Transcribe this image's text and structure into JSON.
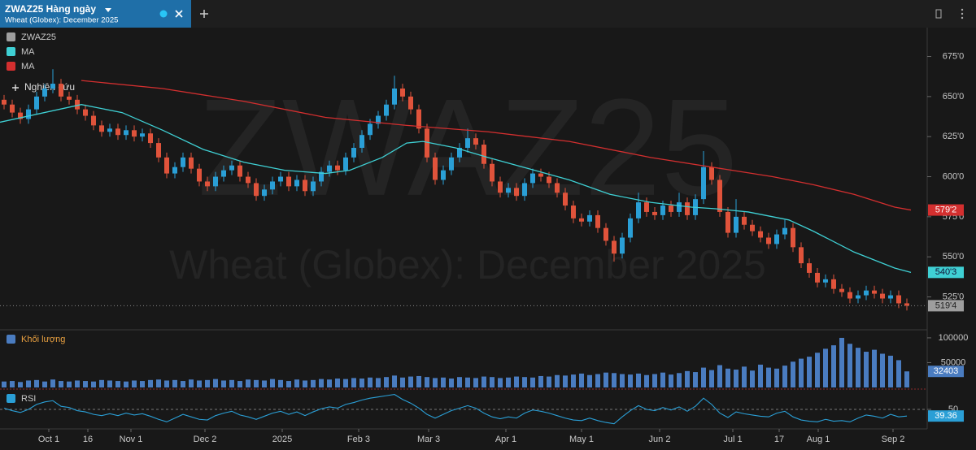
{
  "header": {
    "title": "ZWAZ25 Hàng ngày",
    "subtitle": "Wheat (Globex): December 2025"
  },
  "study_button": "Nghiên cứu",
  "chart_data": [
    {
      "type": "candlestick",
      "name": "ZWAZ25",
      "up_color": "#2a9fd6",
      "down_color": "#e0533b",
      "last_label": "519'4",
      "xlim": [
        -0.5,
        111.5
      ],
      "xticks": [
        {
          "value": 5.5,
          "label": "Oct 1"
        },
        {
          "value": 10.3,
          "label": "16"
        },
        {
          "value": 15.6,
          "label": "Nov 1"
        },
        {
          "value": 24.7,
          "label": "Dec 2"
        },
        {
          "value": 34.2,
          "label": "2025"
        },
        {
          "value": 43.6,
          "label": "Feb 3"
        },
        {
          "value": 52.2,
          "label": "Mar 3"
        },
        {
          "value": 61.7,
          "label": "Apr 1"
        },
        {
          "value": 71,
          "label": "May 1"
        },
        {
          "value": 80.6,
          "label": "Jun 2"
        },
        {
          "value": 89.6,
          "label": "Jul 1"
        },
        {
          "value": 95.3,
          "label": "17"
        },
        {
          "value": 100.1,
          "label": "Aug 1"
        },
        {
          "value": 109.3,
          "label": "Sep 2"
        }
      ],
      "ylim": [
        505,
        693
      ],
      "yticks": [
        {
          "value": 525,
          "label": "525'0"
        },
        {
          "value": 550,
          "label": "550'0"
        },
        {
          "value": 575,
          "label": "575'0"
        },
        {
          "value": 600,
          "label": "600'0"
        },
        {
          "value": 625,
          "label": "625'0"
        },
        {
          "value": 650,
          "label": "650'0"
        },
        {
          "value": 675,
          "label": "675'0"
        }
      ],
      "candles": [
        [
          648,
          651,
          642,
          645
        ],
        [
          645,
          648,
          637,
          640
        ],
        [
          640,
          643,
          633,
          636
        ],
        [
          636,
          645,
          633,
          642
        ],
        [
          642,
          653,
          639,
          650
        ],
        [
          650,
          658,
          647,
          655
        ],
        [
          655,
          667,
          652,
          658
        ],
        [
          658,
          661,
          647,
          650
        ],
        [
          650,
          653,
          645,
          648
        ],
        [
          648,
          651,
          639,
          642
        ],
        [
          642,
          645,
          635,
          638
        ],
        [
          638,
          641,
          629,
          632
        ],
        [
          632,
          635,
          625,
          628
        ],
        [
          628,
          633,
          625,
          630
        ],
        [
          630,
          633,
          623,
          626
        ],
        [
          626,
          632,
          623,
          629
        ],
        [
          629,
          632,
          622,
          625
        ],
        [
          625,
          630,
          622,
          627
        ],
        [
          627,
          630,
          618,
          621
        ],
        [
          621,
          624,
          609,
          612
        ],
        [
          612,
          615,
          599,
          602
        ],
        [
          602,
          609,
          599,
          606
        ],
        [
          606,
          615,
          603,
          612
        ],
        [
          612,
          615,
          602,
          605
        ],
        [
          605,
          608,
          594,
          597
        ],
        [
          597,
          600,
          591,
          594
        ],
        [
          594,
          603,
          591,
          600
        ],
        [
          600,
          607,
          597,
          604
        ],
        [
          604,
          610,
          601,
          607
        ],
        [
          607,
          610,
          597,
          600
        ],
        [
          600,
          603,
          593,
          596
        ],
        [
          596,
          599,
          585,
          588
        ],
        [
          588,
          595,
          585,
          592
        ],
        [
          592,
          600,
          589,
          597
        ],
        [
          597,
          603,
          594,
          600
        ],
        [
          600,
          603,
          591,
          594
        ],
        [
          594,
          601,
          591,
          598
        ],
        [
          598,
          601,
          588,
          591
        ],
        [
          591,
          600,
          588,
          597
        ],
        [
          597,
          606,
          594,
          603
        ],
        [
          603,
          610,
          600,
          607
        ],
        [
          607,
          610,
          601,
          604
        ],
        [
          604,
          615,
          601,
          612
        ],
        [
          612,
          621,
          609,
          618
        ],
        [
          618,
          629,
          615,
          626
        ],
        [
          626,
          636,
          623,
          633
        ],
        [
          633,
          641,
          630,
          638
        ],
        [
          638,
          648,
          635,
          645
        ],
        [
          645,
          663,
          642,
          655
        ],
        [
          655,
          658,
          647,
          650
        ],
        [
          650,
          653,
          639,
          642
        ],
        [
          642,
          645,
          627,
          630
        ],
        [
          630,
          633,
          609,
          612
        ],
        [
          612,
          615,
          595,
          598
        ],
        [
          598,
          607,
          595,
          604
        ],
        [
          604,
          615,
          601,
          612
        ],
        [
          612,
          621,
          609,
          618
        ],
        [
          618,
          630,
          615,
          624
        ],
        [
          624,
          627,
          617,
          620
        ],
        [
          620,
          623,
          605,
          608
        ],
        [
          608,
          611,
          594,
          597
        ],
        [
          597,
          600,
          587,
          590
        ],
        [
          590,
          596,
          587,
          593
        ],
        [
          593,
          596,
          585,
          588
        ],
        [
          588,
          599,
          585,
          596
        ],
        [
          596,
          605,
          593,
          602
        ],
        [
          602,
          605,
          597,
          600
        ],
        [
          600,
          603,
          593,
          596
        ],
        [
          596,
          599,
          587,
          590
        ],
        [
          590,
          593,
          579,
          582
        ],
        [
          582,
          585,
          571,
          574
        ],
        [
          574,
          577,
          569,
          572
        ],
        [
          572,
          579,
          569,
          576
        ],
        [
          576,
          579,
          565,
          568
        ],
        [
          568,
          571,
          557,
          560
        ],
        [
          560,
          563,
          547,
          552
        ],
        [
          552,
          565,
          549,
          562
        ],
        [
          562,
          577,
          559,
          574
        ],
        [
          574,
          590,
          571,
          584
        ],
        [
          584,
          587,
          575,
          578
        ],
        [
          578,
          581,
          573,
          576
        ],
        [
          576,
          585,
          573,
          582
        ],
        [
          582,
          585,
          575,
          578
        ],
        [
          578,
          590,
          575,
          584
        ],
        [
          584,
          587,
          573,
          576
        ],
        [
          576,
          589,
          573,
          586
        ],
        [
          586,
          616,
          583,
          606
        ],
        [
          606,
          609,
          595,
          598
        ],
        [
          598,
          601,
          575,
          578
        ],
        [
          578,
          581,
          562,
          565
        ],
        [
          565,
          586,
          562,
          575
        ],
        [
          575,
          578,
          567,
          570
        ],
        [
          570,
          573,
          563,
          566
        ],
        [
          566,
          569,
          559,
          562
        ],
        [
          562,
          565,
          555,
          558
        ],
        [
          558,
          567,
          555,
          564
        ],
        [
          564,
          573,
          561,
          568
        ],
        [
          568,
          571,
          553,
          556
        ],
        [
          556,
          559,
          543,
          546
        ],
        [
          546,
          549,
          537,
          540
        ],
        [
          540,
          543,
          531,
          534
        ],
        [
          534,
          539,
          531,
          536
        ],
        [
          536,
          539,
          527,
          530
        ],
        [
          530,
          533,
          525,
          528
        ],
        [
          528,
          531,
          521,
          524
        ],
        [
          524,
          529,
          521,
          526
        ],
        [
          526,
          532,
          523,
          529
        ],
        [
          529,
          532,
          524,
          527
        ],
        [
          527,
          530,
          521,
          524
        ],
        [
          524,
          529,
          521,
          526
        ],
        [
          526,
          529,
          518,
          521
        ],
        [
          521,
          524,
          516.5,
          519.5
        ]
      ],
      "series": [
        {
          "name": "MA",
          "color": "#3fd0d4",
          "last_label": "540'3",
          "x": [
            -0.5,
            9.5,
            14.5,
            19.5,
            24.5,
            29.5,
            34.5,
            39.5,
            42.5,
            46.5,
            49.5,
            51.5,
            55.5,
            59.5,
            64.5,
            69.5,
            74.5,
            79.5,
            84.5,
            87.5,
            91.5,
            96.5,
            99.5,
            104.5,
            109.5,
            111.5
          ],
          "values": [
            634,
            645,
            640,
            629,
            617,
            609,
            604,
            602,
            604,
            612,
            621,
            622,
            618,
            612,
            605,
            598,
            589,
            584,
            581,
            580,
            578,
            573,
            566,
            553,
            543,
            540.3
          ]
        },
        {
          "name": "MA",
          "color": "#d32f2f",
          "last_label": "579'2",
          "x": [
            9.5,
            19.5,
            29.5,
            39.5,
            49.5,
            59.5,
            69.5,
            79.5,
            89.5,
            94.5,
            99.5,
            104.5,
            109.5,
            111.5
          ],
          "values": [
            660,
            655,
            647,
            637,
            632,
            628,
            622,
            612,
            604,
            600,
            595,
            589,
            581,
            579.2
          ]
        }
      ]
    },
    {
      "type": "bar",
      "name": "Khối lượng",
      "color": "#4a7cc0",
      "ylim": [
        0,
        113000
      ],
      "yticks": [
        50000,
        100000
      ],
      "values": [
        12000,
        13000,
        11000,
        14000,
        15000,
        12000,
        16000,
        13000,
        12000,
        14000,
        13000,
        12000,
        15000,
        14000,
        13000,
        12000,
        14000,
        13000,
        15000,
        16000,
        14000,
        15000,
        13000,
        16000,
        14000,
        15000,
        17000,
        14000,
        15000,
        13000,
        16000,
        15000,
        14000,
        17000,
        15000,
        13000,
        16000,
        14000,
        15000,
        17000,
        16000,
        18000,
        17000,
        19000,
        18000,
        20000,
        19000,
        21000,
        24000,
        20000,
        22000,
        23000,
        21000,
        19000,
        20000,
        18000,
        21000,
        20000,
        19000,
        22000,
        21000,
        19000,
        20000,
        22000,
        21000,
        20000,
        23000,
        22000,
        25000,
        24000,
        26000,
        28000,
        25000,
        27000,
        30000,
        29000,
        27000,
        26000,
        28000,
        25000,
        27000,
        30000,
        26000,
        29000,
        33000,
        31000,
        40000,
        35000,
        45000,
        38000,
        36000,
        42000,
        34000,
        46000,
        40000,
        38000,
        44000,
        52000,
        58000,
        62000,
        70000,
        78000,
        85000,
        100000,
        88000,
        80000,
        72000,
        76000,
        68000,
        64000,
        55000,
        32403
      ]
    },
    {
      "type": "line",
      "name": "RSI",
      "color": "#2a9fd6",
      "ylim": [
        20,
        80
      ],
      "yticks": [
        50
      ],
      "grid": true,
      "values": [
        52,
        48,
        45,
        50,
        58,
        62,
        64,
        55,
        53,
        48,
        46,
        42,
        40,
        43,
        40,
        44,
        41,
        43,
        39,
        34,
        30,
        36,
        42,
        38,
        34,
        33,
        40,
        44,
        47,
        41,
        38,
        34,
        39,
        44,
        47,
        42,
        46,
        40,
        46,
        51,
        54,
        52,
        58,
        61,
        65,
        68,
        70,
        72,
        74,
        66,
        60,
        52,
        42,
        36,
        42,
        48,
        52,
        56,
        52,
        44,
        38,
        35,
        38,
        36,
        44,
        49,
        47,
        44,
        40,
        36,
        33,
        32,
        36,
        32,
        29,
        27,
        38,
        48,
        56,
        50,
        48,
        53,
        49,
        54,
        47,
        55,
        68,
        58,
        44,
        37,
        46,
        43,
        41,
        39,
        38,
        44,
        47,
        38,
        33,
        31,
        30,
        34,
        31,
        32,
        30,
        36,
        41,
        39,
        36,
        42,
        38,
        39.36
      ]
    }
  ]
}
